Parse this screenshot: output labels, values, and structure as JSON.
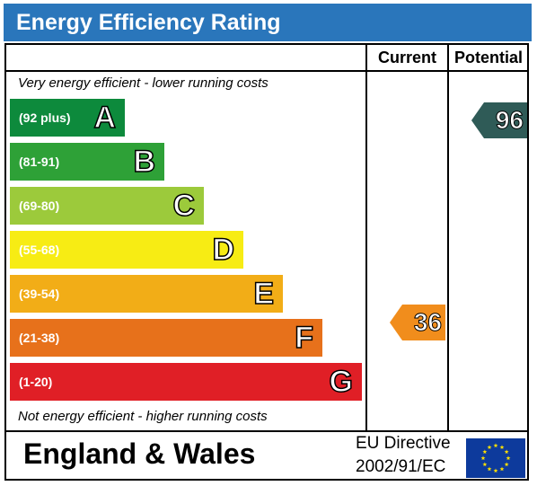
{
  "chart_data": {
    "type": "energy-rating",
    "title": "Energy Efficiency Rating",
    "columns": [
      "Current",
      "Potential"
    ],
    "top_note": "Very energy efficient - lower running costs",
    "bottom_note": "Not energy efficient - higher running costs",
    "bands": [
      {
        "letter": "A",
        "range": "(92 plus)",
        "min": 92,
        "max": 100,
        "color": "#0d8a3c"
      },
      {
        "letter": "B",
        "range": "(81-91)",
        "min": 81,
        "max": 91,
        "color": "#2ea137"
      },
      {
        "letter": "C",
        "range": "(69-80)",
        "min": 69,
        "max": 80,
        "color": "#9cca3b"
      },
      {
        "letter": "D",
        "range": "(55-68)",
        "min": 55,
        "max": 68,
        "color": "#f7ec14"
      },
      {
        "letter": "E",
        "range": "(39-54)",
        "min": 39,
        "max": 54,
        "color": "#f2ad17"
      },
      {
        "letter": "F",
        "range": "(21-38)",
        "min": 21,
        "max": 38,
        "color": "#e7711b"
      },
      {
        "letter": "G",
        "range": "(1-20)",
        "min": 1,
        "max": 20,
        "color": "#e01f26"
      }
    ],
    "current": {
      "value": "36",
      "band": "F",
      "color": "#f18d1c"
    },
    "potential": {
      "value": "96",
      "band": "A",
      "color": "#2f5b57"
    }
  },
  "footer": {
    "region": "England & Wales",
    "directive_line1": "EU Directive",
    "directive_line2": "2002/91/EC",
    "flag_icon": "eu-flag-icon",
    "flag_color": "#0d3a9c",
    "star_color": "#ffe000"
  }
}
